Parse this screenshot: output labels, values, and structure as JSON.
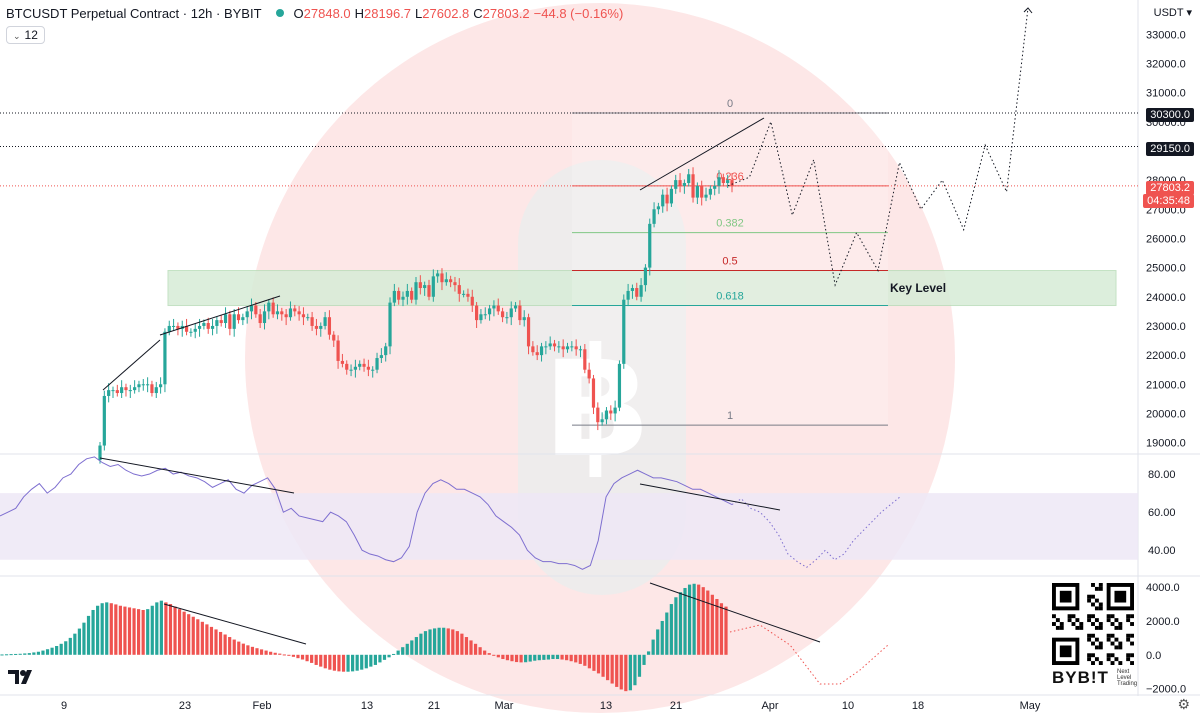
{
  "header": {
    "symbol": "BTCUSDT Perpetual Contract · 12h · BYBIT",
    "open_key": "O",
    "open": "27848.0",
    "high_key": "H",
    "high": "28196.7",
    "low_key": "L",
    "low": "27602.8",
    "close_key": "C",
    "close": "27803.2",
    "change": "−44.8 (−0.16%)"
  },
  "interval": "12",
  "currency": "USDT",
  "price_tags": {
    "level_1": "30300.0",
    "level_2": "29150.0",
    "last": "27803.2",
    "countdown": "04:35:48"
  },
  "branding": {
    "exchange": "BYB!T",
    "tagline": "Next Level Trading"
  },
  "colors": {
    "up": "#26a69a",
    "down": "#ef5350",
    "zone": "#d7ecd7",
    "rsi_band": "#ede7f6",
    "rsi_line": "#7e6fd0"
  },
  "chart_data": [
    {
      "type": "candlestick",
      "title": "BTCUSDT Perpetual Contract · 12h · BYBIT",
      "y_ticks": [
        "33000.0",
        "32000.0",
        "31000.0",
        "30000.0",
        "29000.0",
        "28000.0",
        "27000.0",
        "26000.0",
        "25000.0",
        "24000.0",
        "23000.0",
        "22000.0",
        "21000.0",
        "20000.0",
        "19000.0"
      ],
      "ylim": [
        18850,
        33900
      ],
      "x_ticks": [
        "9",
        "23",
        "Feb",
        "13",
        "21",
        "Mar",
        "13",
        "21",
        "Apr",
        "10",
        "18",
        "May"
      ],
      "series_close": [
        18900,
        20600,
        20800,
        20800,
        20700,
        20900,
        20800,
        20800,
        20900,
        21000,
        21000,
        21000,
        20700,
        20900,
        21000,
        22800,
        23000,
        23000,
        22900,
        23000,
        22800,
        22800,
        22900,
        23000,
        23100,
        22900,
        23000,
        23200,
        23100,
        23400,
        22900,
        23400,
        23200,
        23300,
        23500,
        23700,
        23400,
        23100,
        23500,
        23800,
        23400,
        23500,
        23400,
        23300,
        23600,
        23500,
        23400,
        23300,
        23300,
        23000,
        22900,
        23000,
        23300,
        22700,
        22500,
        21800,
        21700,
        21500,
        21500,
        21600,
        21700,
        21600,
        21500,
        21500,
        21900,
        22000,
        22300,
        23800,
        24200,
        23900,
        24000,
        24200,
        23900,
        24500,
        24300,
        24400,
        24000,
        24700,
        24800,
        24500,
        24600,
        24500,
        24400,
        24100,
        24100,
        24000,
        23700,
        23200,
        23400,
        23400,
        23600,
        23700,
        23500,
        23300,
        23300,
        23600,
        23700,
        23200,
        23300,
        22300,
        22100,
        22000,
        22300,
        22300,
        22400,
        22300,
        22300,
        22200,
        22300,
        22300,
        22200,
        22200,
        21500,
        21200,
        20200,
        19700,
        19800,
        20100,
        20000,
        20200,
        21700,
        23900,
        24200,
        24300,
        24000,
        24400,
        25000,
        26500,
        27000,
        27100,
        27500,
        27200,
        27700,
        28000,
        27800,
        27900,
        28200,
        27400,
        27800,
        27400,
        27500,
        27700,
        27800,
        28100,
        27900,
        28000,
        27803
      ],
      "annotations": {
        "fib_levels": [
          {
            "label": "0",
            "price": 30300
          },
          {
            "label": "0.236",
            "price": 27800
          },
          {
            "label": "0.382",
            "price": 26200
          },
          {
            "label": "0.5",
            "price": 24900
          },
          {
            "label": "0.618",
            "price": 23700
          },
          {
            "label": "1",
            "price": 19600
          }
        ],
        "key_level_label": "Key Level",
        "key_zone": [
          23700,
          24900
        ],
        "horizontal_levels": [
          30300,
          29150,
          27803.2
        ],
        "projection_path": [
          27803,
          28100,
          30000,
          26800,
          28700,
          24400,
          26200,
          24900,
          28600,
          27000,
          28000,
          26300,
          29200,
          27600,
          33900
        ]
      }
    },
    {
      "type": "line",
      "title": "",
      "y_ticks": [
        "80.00",
        "60.00",
        "40.00"
      ],
      "ylim": [
        27,
        90
      ],
      "band": [
        35,
        70
      ],
      "values": [
        58,
        60,
        62,
        68,
        72,
        75,
        70,
        73,
        78,
        80,
        85,
        88,
        89,
        86,
        84,
        85,
        82,
        80,
        79,
        80,
        82,
        83,
        80,
        81,
        79,
        78,
        76,
        73,
        75,
        77,
        72,
        70,
        74,
        76,
        78,
        72,
        60,
        62,
        58,
        57,
        56,
        55,
        60,
        58,
        55,
        48,
        40,
        38,
        37,
        35,
        34,
        36,
        42,
        60,
        70,
        75,
        77,
        75,
        72,
        72,
        70,
        68,
        64,
        58,
        55,
        52,
        48,
        40,
        36,
        34,
        34,
        33,
        33,
        32,
        30,
        32,
        45,
        68,
        75,
        78,
        80,
        82,
        80,
        78,
        78,
        77,
        76,
        74,
        72,
        72,
        70,
        68,
        66,
        64
      ],
      "projection": [
        64,
        67,
        62,
        60,
        55,
        48,
        38,
        34,
        31,
        35,
        40,
        35,
        38,
        45,
        50,
        55,
        60,
        64,
        68
      ]
    },
    {
      "type": "bar",
      "title": "",
      "y_ticks": [
        "4000.0",
        "2000.0",
        "0.0",
        "−2000.0"
      ],
      "ylim": [
        -2200,
        4600
      ],
      "values": [
        20,
        30,
        40,
        50,
        60,
        80,
        100,
        140,
        180,
        250,
        330,
        420,
        520,
        650,
        800,
        1000,
        1250,
        1550,
        1900,
        2300,
        2650,
        2900,
        3050,
        3100,
        3050,
        2980,
        2900,
        2850,
        2800,
        2750,
        2700,
        2650,
        2700,
        2900,
        3100,
        3200,
        3100,
        3000,
        2850,
        2700,
        2550,
        2400,
        2250,
        2100,
        1950,
        1800,
        1650,
        1500,
        1350,
        1200,
        1050,
        900,
        780,
        660,
        560,
        470,
        390,
        320,
        250,
        180,
        120,
        70,
        20,
        -50,
        -120,
        -200,
        -280,
        -380,
        -480,
        -600,
        -700,
        -800,
        -880,
        -940,
        -980,
        -1000,
        -1000,
        -980,
        -940,
        -880,
        -800,
        -700,
        -600,
        -450,
        -300,
        -150,
        50,
        250,
        450,
        650,
        850,
        1050,
        1250,
        1400,
        1500,
        1560,
        1600,
        1600,
        1560,
        1500,
        1400,
        1250,
        1050,
        850,
        650,
        450,
        250,
        100,
        -50,
        -150,
        -250,
        -320,
        -380,
        -430,
        -450,
        -440,
        -400,
        -350,
        -320,
        -300,
        -280,
        -250,
        -250,
        -280,
        -320,
        -380,
        -450,
        -540,
        -650,
        -800,
        -950,
        -1100,
        -1300,
        -1500,
        -1700,
        -1900,
        -2050,
        -2150,
        -2100,
        -1800,
        -1300,
        -600,
        200,
        900,
        1500,
        2000,
        2500,
        3000,
        3400,
        3700,
        3950,
        4150,
        4200,
        4150,
        4000,
        3800,
        3550,
        3300,
        3050,
        2850
      ]
    }
  ]
}
